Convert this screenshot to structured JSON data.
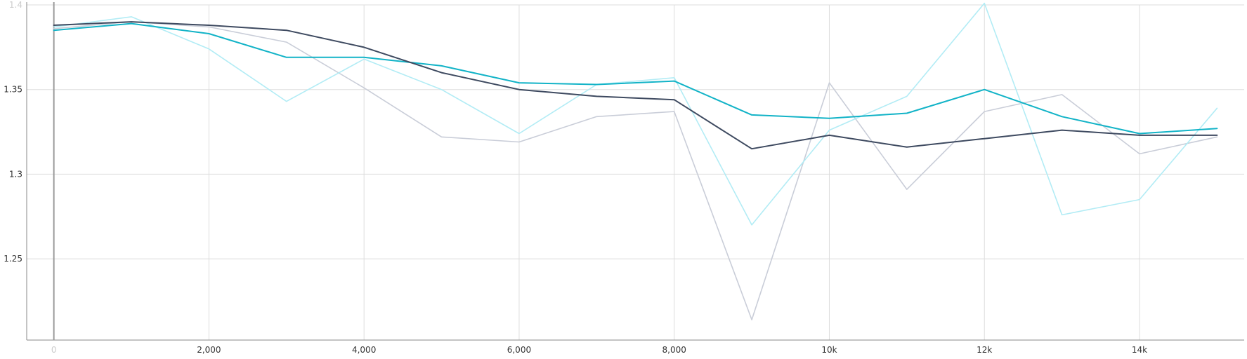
{
  "chart_data": {
    "type": "line",
    "title": "",
    "xlabel": "",
    "ylabel": "",
    "xlim": [
      -350,
      15350
    ],
    "ylim": [
      1.202,
      1.4
    ],
    "grid": true,
    "x_ticks": [
      {
        "value": 0,
        "label": "0"
      },
      {
        "value": 2000,
        "label": "2,000"
      },
      {
        "value": 4000,
        "label": "4,000"
      },
      {
        "value": 6000,
        "label": "6,000"
      },
      {
        "value": 8000,
        "label": "8,000"
      },
      {
        "value": 10000,
        "label": "10k"
      },
      {
        "value": 12000,
        "label": "12k"
      },
      {
        "value": 14000,
        "label": "14k"
      }
    ],
    "y_ticks": [
      {
        "value": 1.25,
        "label": "1.25"
      },
      {
        "value": 1.3,
        "label": "1.3"
      },
      {
        "value": 1.35,
        "label": "1.35"
      },
      {
        "value": 1.4,
        "label": "1.4"
      }
    ],
    "x": [
      0,
      1000,
      2000,
      3000,
      4000,
      5000,
      6000,
      7000,
      8000,
      9000,
      10000,
      11000,
      12000,
      13000,
      14000,
      15000
    ],
    "series": [
      {
        "role": "raw",
        "color": "#c9cdd8",
        "values": [
          1.386,
          1.39,
          1.387,
          1.378,
          1.351,
          1.322,
          1.319,
          1.334,
          1.337,
          1.214,
          1.354,
          1.291,
          1.337,
          1.347,
          1.312,
          1.322
        ]
      },
      {
        "role": "raw",
        "color": "#b2ecf5",
        "values": [
          1.387,
          1.393,
          1.374,
          1.343,
          1.368,
          1.35,
          1.324,
          1.353,
          1.357,
          1.27,
          1.326,
          1.346,
          1.401,
          1.276,
          1.285,
          1.339
        ]
      },
      {
        "role": "smoothed",
        "color": "#12b3c7",
        "values": [
          1.385,
          1.389,
          1.383,
          1.369,
          1.369,
          1.364,
          1.354,
          1.353,
          1.355,
          1.335,
          1.333,
          1.336,
          1.35,
          1.334,
          1.324,
          1.327
        ]
      },
      {
        "role": "smoothed",
        "color": "#3e4a60",
        "values": [
          1.388,
          1.39,
          1.388,
          1.385,
          1.375,
          1.36,
          1.35,
          1.346,
          1.344,
          1.315,
          1.323,
          1.316,
          1.321,
          1.326,
          1.323,
          1.323
        ]
      }
    ]
  }
}
